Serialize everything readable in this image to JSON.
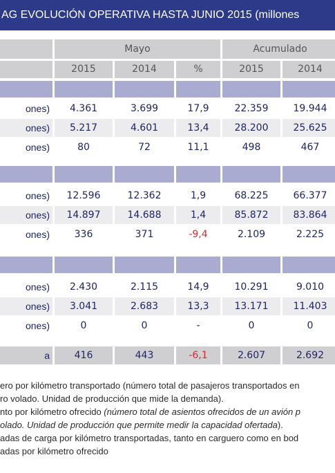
{
  "title": "AG EVOLUCIÓN OPERATIVA HASTA JUNIO 2015 (millones",
  "header": {
    "groups": [
      "Mayo",
      "Acumulado"
    ],
    "columns": [
      "2015",
      "2014",
      "%",
      "2015",
      "2014"
    ]
  },
  "sections": [
    {
      "rows": [
        {
          "label": "ones)",
          "cells": [
            "4.361",
            "3.699",
            "17,9",
            "22.359",
            "19.944"
          ]
        },
        {
          "label": "ones)",
          "cells": [
            "5.217",
            "4.601",
            "13,4",
            "28.200",
            "25.625"
          ]
        },
        {
          "label": "ones)",
          "cells": [
            "80",
            "72",
            "11,1",
            "498",
            "467"
          ]
        }
      ]
    },
    {
      "rows": [
        {
          "label": "ones)",
          "cells": [
            "12.596",
            "12.362",
            "1,9",
            "68.225",
            "66.377"
          ]
        },
        {
          "label": "ones)",
          "cells": [
            "14.897",
            "14.688",
            "1,4",
            "85.872",
            "83.864"
          ]
        },
        {
          "label": "ones)",
          "cells": [
            "336",
            "371",
            "-9,4",
            "2.109",
            "2.225"
          ],
          "red_cells": [
            2
          ]
        }
      ]
    },
    {
      "rows": [
        {
          "label": "ones)",
          "cells": [
            "2.430",
            "2.115",
            "14,9",
            "10.291",
            "9.010"
          ]
        },
        {
          "label": "ones)",
          "cells": [
            "3.041",
            "2.683",
            "13,3",
            "13.171",
            "11.403"
          ]
        },
        {
          "label": "ones)",
          "cells": [
            "0",
            "0",
            "-",
            "0",
            "0"
          ]
        }
      ]
    }
  ],
  "total": {
    "label": "a",
    "cells": [
      "416",
      "443",
      "-6,1",
      "2.607",
      "2.692"
    ],
    "red_cells": [
      2
    ]
  },
  "footnotes": [
    [
      "ero por kilómetro transportado (número total de pasajeros transportados en"
    ],
    [
      "ro volado. Unidad de producción que mide la demanda)."
    ],
    [
      "nto por kilómetro ofrecido ",
      "(número total de asientos ofrecidos de un avión p"
    ],
    [
      "olado. Unidad de producción que permite medir la capacidad ofertada",
      ")."
    ],
    [
      "adas de carga por kilómetro transportadas, tanto en carguero como en bod"
    ],
    [
      "adas por kilómetro ofrecido"
    ]
  ],
  "red_color": "#e0262a"
}
